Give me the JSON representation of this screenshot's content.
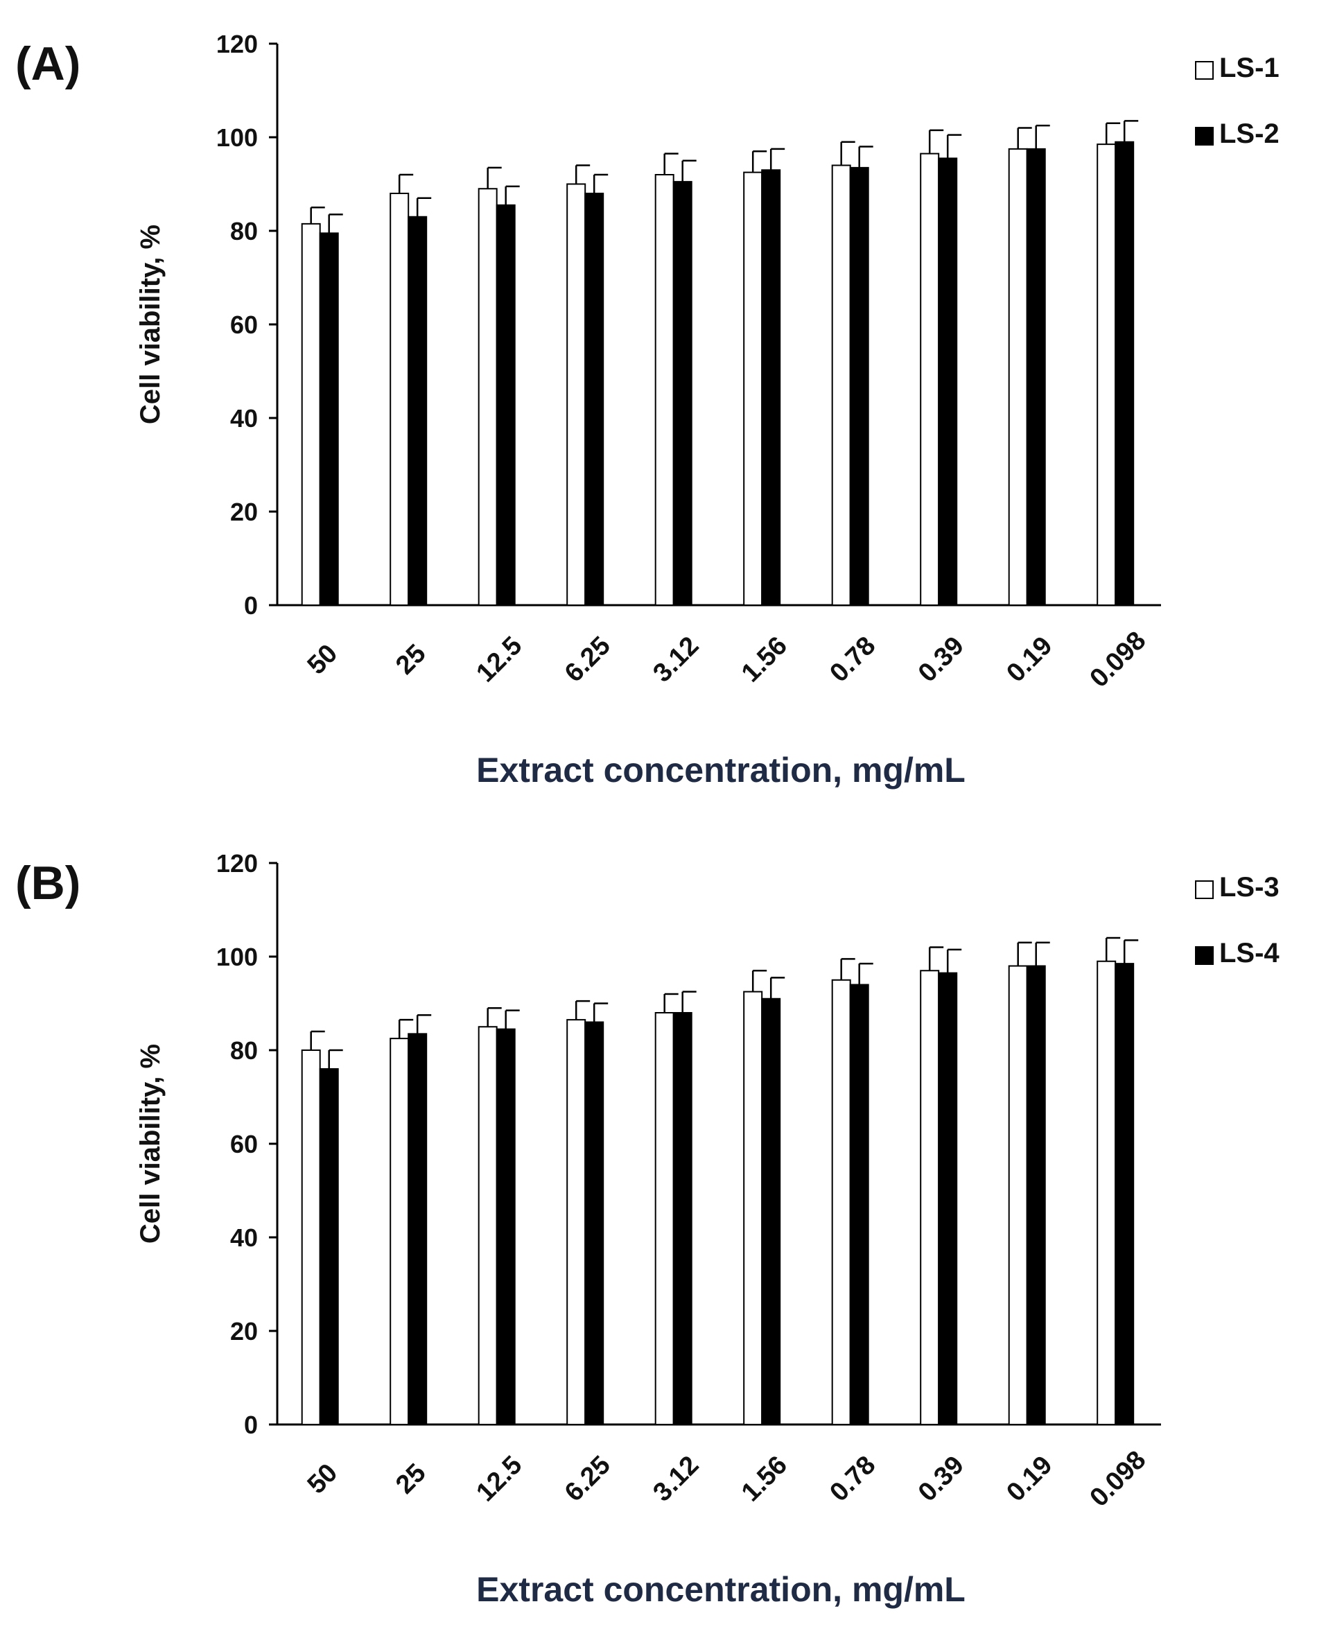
{
  "colors": {
    "open_bar": "#ffffff",
    "filled_bar": "#000000",
    "axis": "#000000",
    "xlabel": "#1f2a44"
  },
  "chart_data": [
    {
      "type": "bar",
      "panel_label": "(A)",
      "title": "",
      "xlabel": "Extract concentration, mg/mL",
      "ylabel": "Cell  viability, %",
      "ylim": [
        0,
        120
      ],
      "yticks": [
        "0",
        "20",
        "40",
        "60",
        "80",
        "100",
        "120"
      ],
      "categories": [
        "50",
        "25",
        "12.5",
        "6.25",
        "3.12",
        "1.56",
        "0.78",
        "0.39",
        "0.19",
        "0.098"
      ],
      "legend_position": "top-right",
      "series": [
        {
          "name": "LS-1",
          "style": "open",
          "values": [
            81.5,
            88,
            89,
            90,
            92,
            92.5,
            94,
            96.5,
            97.5,
            98.5
          ],
          "errors": [
            3.5,
            4,
            4.5,
            4,
            4.5,
            4.5,
            5,
            5,
            4.5,
            4.5
          ]
        },
        {
          "name": "LS-2",
          "style": "filled",
          "values": [
            79.5,
            83,
            85.5,
            88,
            90.5,
            93,
            93.5,
            95.5,
            97.5,
            99
          ],
          "errors": [
            4,
            4,
            4,
            4,
            4.5,
            4.5,
            4.5,
            5,
            5,
            4.5
          ]
        }
      ]
    },
    {
      "type": "bar",
      "panel_label": "(B)",
      "title": "",
      "xlabel": "Extract concentration, mg/mL",
      "ylabel": "Cell viability, %",
      "ylim": [
        0,
        120
      ],
      "yticks": [
        "0",
        "20",
        "40",
        "60",
        "80",
        "100",
        "120"
      ],
      "categories": [
        "50",
        "25",
        "12.5",
        "6.25",
        "3.12",
        "1.56",
        "0.78",
        "0.39",
        "0.19",
        "0.098"
      ],
      "legend_position": "top-right",
      "series": [
        {
          "name": "LS-3",
          "style": "open",
          "values": [
            80,
            82.5,
            85,
            86.5,
            88,
            92.5,
            95,
            97,
            98,
            99
          ],
          "errors": [
            4,
            4,
            4,
            4,
            4,
            4.5,
            4.5,
            5,
            5,
            5
          ]
        },
        {
          "name": "LS-4",
          "style": "filled",
          "values": [
            76,
            83.5,
            84.5,
            86,
            88,
            91,
            94,
            96.5,
            98,
            98.5
          ],
          "errors": [
            4,
            4,
            4,
            4,
            4.5,
            4.5,
            4.5,
            5,
            5,
            5
          ]
        }
      ]
    }
  ]
}
